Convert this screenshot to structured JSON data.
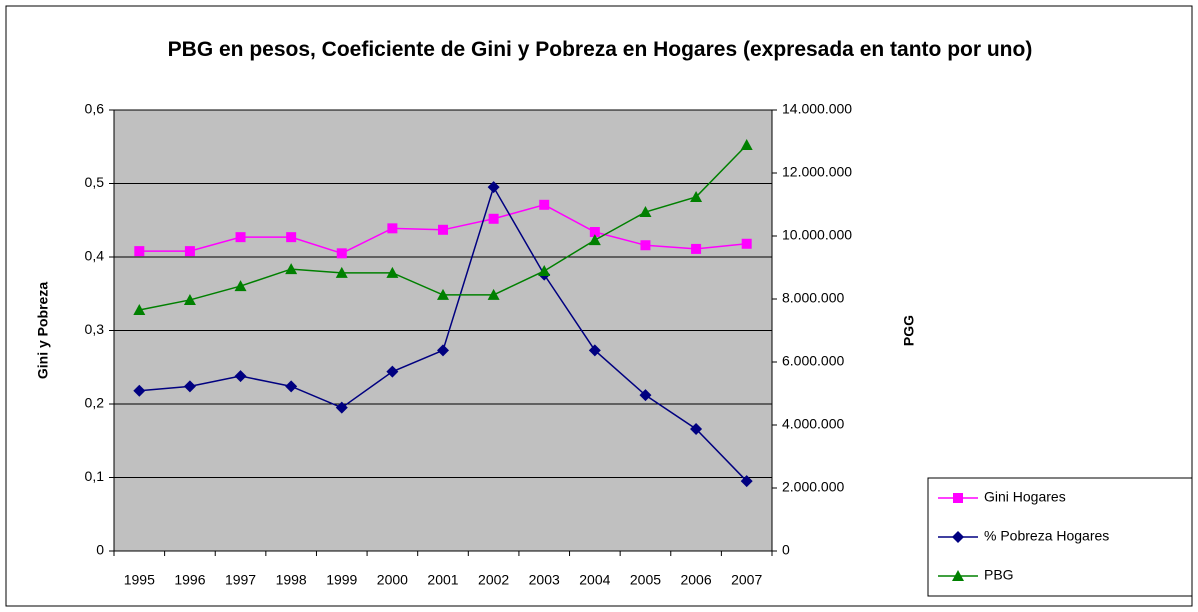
{
  "chart_data": {
    "type": "line",
    "title": "PBG en pesos, Coeficiente de Gini y Pobreza en Hogares (expresada en tanto por uno)",
    "ylabel": "Gini y Pobreza",
    "y2label": "PGG",
    "categories": [
      "1995",
      "1996",
      "1997",
      "1998",
      "1999",
      "2000",
      "2001",
      "2002",
      "2003",
      "2004",
      "2005",
      "2006",
      "2007"
    ],
    "series": [
      {
        "name": "Gini Hogares",
        "color": "#ff00ff",
        "marker": "square",
        "values": [
          0.408,
          0.408,
          0.427,
          0.427,
          0.405,
          0.439,
          0.437,
          0.452,
          0.471,
          0.434,
          0.416,
          0.411,
          0.418
        ]
      },
      {
        "name": "% Pobreza Hogares",
        "color": "#000080",
        "marker": "diamond",
        "values": [
          0.218,
          0.224,
          0.238,
          0.224,
          0.195,
          0.244,
          0.273,
          0.495,
          0.376,
          0.273,
          0.212,
          0.166,
          0.095
        ]
      },
      {
        "name": "PBG",
        "color": "#008000",
        "marker": "triangle",
        "axis": "y2",
        "values": [
          7650000,
          7970000,
          8410000,
          8950000,
          8830000,
          8830000,
          8130000,
          8130000,
          8890000,
          9870000,
          10760000,
          11240000,
          12890000
        ]
      }
    ],
    "ylim": [
      0,
      0.6
    ],
    "yticks": [
      0,
      {
        "value": 0.1,
        "label": "0,1"
      },
      {
        "value": 0.2,
        "label": "0,2"
      },
      {
        "value": 0.3,
        "label": "0,3"
      },
      {
        "value": 0.4,
        "label": "0,4"
      },
      {
        "value": 0.5,
        "label": "0,5"
      },
      {
        "value": 0.6,
        "label": "0,6"
      }
    ],
    "y2lim": [
      0,
      14000000
    ],
    "y2ticks": [
      0,
      {
        "value": 2000000,
        "label": "2.000.000"
      },
      {
        "value": 4000000,
        "label": "4.000.000"
      },
      {
        "value": 6000000,
        "label": "6.000.000"
      },
      {
        "value": 8000000,
        "label": "8.000.000"
      },
      {
        "value": 10000000,
        "label": "10.000.000"
      },
      {
        "value": 12000000,
        "label": "12.000.000"
      },
      {
        "value": 14000000,
        "label": "14.000.000"
      }
    ],
    "grid": true,
    "legend": "bottom-right",
    "plot_background": "#c0c0c0"
  }
}
